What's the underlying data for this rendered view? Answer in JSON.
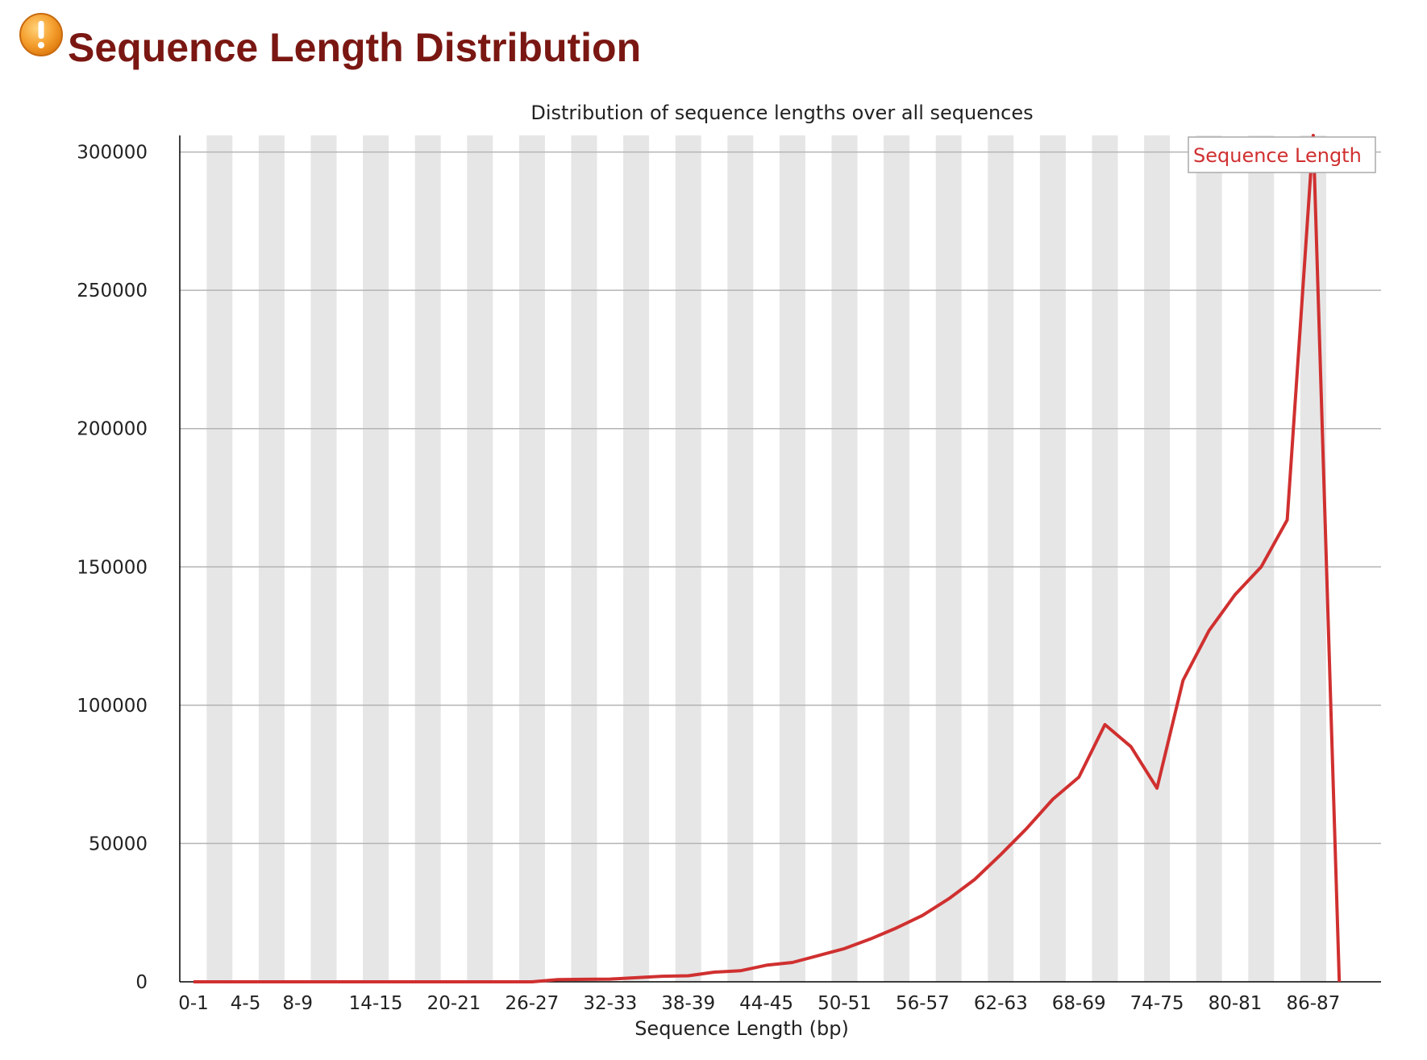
{
  "page": {
    "title": "Sequence Length Distribution",
    "status_icon": "warning-icon",
    "status_color": "#f0a030"
  },
  "chart_data": {
    "type": "line",
    "title": "Distribution of sequence lengths over all sequences",
    "xlabel": "Sequence Length (bp)",
    "ylabel": "",
    "ylim": [
      0,
      306000
    ],
    "yticks": [
      0,
      50000,
      100000,
      150000,
      200000,
      250000,
      300000
    ],
    "grid": "horizontal",
    "legend": {
      "placement": "top-right"
    },
    "line_color": "#d03030",
    "band_color": "#e6e6e6",
    "categories": [
      "0-1",
      "2-3",
      "4-5",
      "6-7",
      "8-9",
      "10-11",
      "12-13",
      "14-15",
      "16-17",
      "18-19",
      "20-21",
      "22-23",
      "24-25",
      "26-27",
      "28-29",
      "30-31",
      "32-33",
      "34-35",
      "36-37",
      "38-39",
      "40-41",
      "42-43",
      "44-45",
      "46-47",
      "48-49",
      "50-51",
      "52-53",
      "54-55",
      "56-57",
      "58-59",
      "60-61",
      "62-63",
      "64-65",
      "66-67",
      "68-69",
      "70-71",
      "72-73",
      "74-75",
      "76-77",
      "78-79",
      "80-81",
      "82-83",
      "84-85",
      "86-87",
      "88-89"
    ],
    "xtick_labels": [
      "0-1",
      "4-5",
      "8-9",
      "14-15",
      "20-21",
      "26-27",
      "32-33",
      "38-39",
      "44-45",
      "50-51",
      "56-57",
      "62-63",
      "68-69",
      "74-75",
      "80-81",
      "86-87"
    ],
    "series": [
      {
        "name": "Sequence Length",
        "values": [
          0,
          0,
          0,
          0,
          0,
          0,
          0,
          0,
          0,
          0,
          0,
          0,
          0,
          0,
          800,
          900,
          1000,
          1500,
          2000,
          2200,
          3500,
          4000,
          6000,
          7000,
          9500,
          12000,
          15500,
          19500,
          24000,
          30000,
          37000,
          46000,
          55500,
          66000,
          74000,
          93000,
          85000,
          70000,
          109000,
          127000,
          140000,
          150000,
          167000,
          306000,
          0
        ]
      }
    ]
  }
}
